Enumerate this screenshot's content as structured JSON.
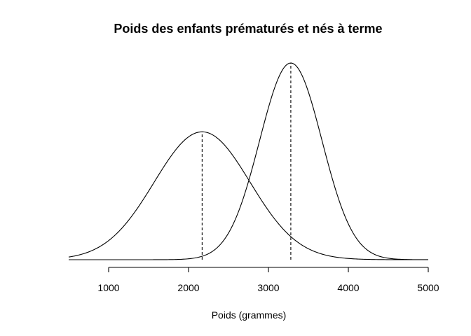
{
  "chart_data": {
    "type": "line",
    "title": "Poids des enfants prématurés et nés à terme",
    "xlabel": "Poids (grammes)",
    "ylabel": "",
    "xlim": [
      500,
      5000
    ],
    "x_ticks": [
      1000,
      2000,
      3000,
      4000,
      5000
    ],
    "y_axis_shown": false,
    "grid": false,
    "series": [
      {
        "mean": 2170,
        "sd": 600,
        "peak_density": 0.000665
      },
      {
        "mean": 3280,
        "sd": 390,
        "peak_density": 0.001023
      }
    ],
    "reference_lines": [
      {
        "x": 2170,
        "style": "dashed"
      },
      {
        "x": 3280,
        "style": "dashed"
      }
    ],
    "colors": {
      "line": "#000000",
      "background": "#ffffff"
    }
  }
}
